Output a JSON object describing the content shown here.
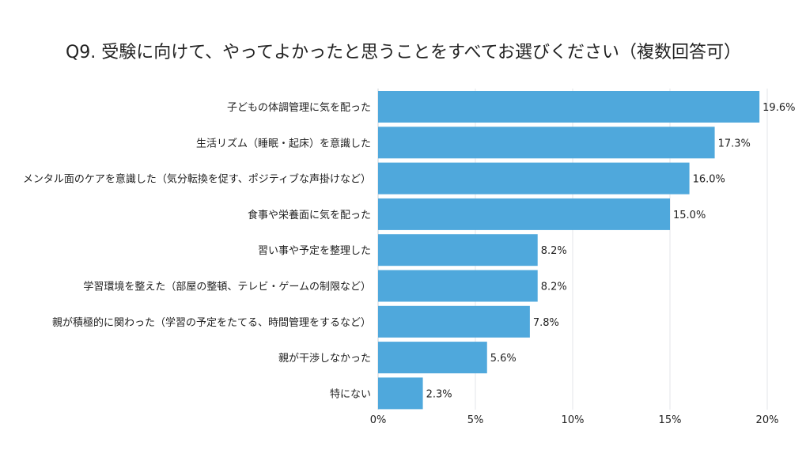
{
  "chart_data": {
    "type": "bar",
    "orientation": "horizontal",
    "title": "Q9. 受験に向けて、やってよかったと思うことをすべてお選びください（複数回答可）",
    "categories": [
      "子どもの体調管理に気を配った",
      "生活リズム（睡眠・起床）を意識した",
      "メンタル面のケアを意識した（気分転換を促す、ポジティブな声掛けなど）",
      "食事や栄養面に気を配った",
      "習い事や予定を整理した",
      "学習環境を整えた（部屋の整頓、テレビ・ゲームの制限など）",
      "親が積極的に関わった（学習の予定をたてる、時間管理をするなど）",
      "親が干渉しなかった",
      "特にない"
    ],
    "values": [
      19.6,
      17.3,
      16.0,
      15.0,
      8.2,
      8.2,
      7.8,
      5.6,
      2.3
    ],
    "data_labels": [
      "19.6%",
      "17.3%",
      "16.0%",
      "15.0%",
      "8.2%",
      "8.2%",
      "7.8%",
      "5.6%",
      "2.3%"
    ],
    "xlim": [
      0,
      20
    ],
    "xticks": [
      0,
      5,
      10,
      15,
      20
    ],
    "xtick_labels": [
      "0%",
      "5%",
      "10%",
      "15%",
      "20%"
    ],
    "grid": true,
    "bar_color": "#4FA8DC"
  }
}
